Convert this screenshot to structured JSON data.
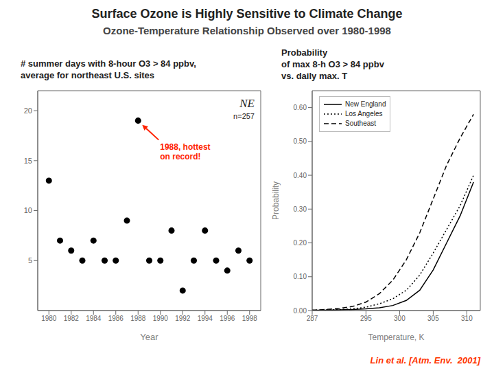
{
  "title": "Surface Ozone is Highly Sensitive to Climate Change",
  "subtitle": "Ozone-Temperature Relationship Observed over 1980-1998",
  "annotations": [
    {
      "text": "Lin et al. [Atm. Env.  2001]",
      "color": "#ff3300"
    }
  ],
  "chart_data": [
    {
      "type": "scatter",
      "title": [
        "# summer days with 8-hour O3 > 84 ppbv,",
        "average for northeast U.S. sites"
      ],
      "x_label": "Year",
      "x": [
        1980,
        1981,
        1982,
        1983,
        1984,
        1985,
        1986,
        1987,
        1988,
        1989,
        1990,
        1991,
        1992,
        1993,
        1994,
        1995,
        1996,
        1997,
        1998
      ],
      "values": [
        13,
        7,
        6,
        5,
        7,
        5,
        5,
        9,
        19,
        5,
        5,
        8,
        2,
        5,
        8,
        5,
        4,
        6,
        5
      ],
      "color": "#000000",
      "xlim": [
        1979,
        1999
      ],
      "xticks": [
        1980,
        1982,
        1984,
        1986,
        1988,
        1990,
        1992,
        1994,
        1996,
        1998
      ],
      "ylim": [
        0,
        22
      ],
      "yticks": [
        5,
        10,
        15,
        20
      ],
      "grid": false,
      "annotations": [
        {
          "text": "NE"
        },
        {
          "text": "n=257"
        },
        {
          "text": [
            "1988, hottest",
            "on record!"
          ],
          "color": "#ff2200"
        }
      ]
    },
    {
      "type": "line",
      "title": [
        "Probability",
        "of max 8-h O3 > 84 ppbv",
        "vs. daily max. T"
      ],
      "x_label": "Temperature, K",
      "y_label": "Probability",
      "x": [
        287,
        289,
        291,
        293,
        295,
        297,
        299,
        301,
        303,
        305,
        307,
        309,
        311
      ],
      "series": [
        {
          "name": "New England",
          "color": "#000000",
          "line_style": "solid",
          "values": [
            0.001,
            0.001,
            0.002,
            0.003,
            0.005,
            0.008,
            0.015,
            0.03,
            0.06,
            0.12,
            0.2,
            0.28,
            0.38
          ]
        },
        {
          "name": "Los Angeles",
          "color": "#000000",
          "line_style": "dotted",
          "values": [
            0.001,
            0.002,
            0.003,
            0.005,
            0.01,
            0.02,
            0.035,
            0.06,
            0.105,
            0.17,
            0.24,
            0.31,
            0.4
          ]
        },
        {
          "name": "Southeast",
          "color": "#000000",
          "line_style": "dashed",
          "values": [
            0.001,
            0.003,
            0.006,
            0.012,
            0.025,
            0.05,
            0.09,
            0.15,
            0.23,
            0.33,
            0.43,
            0.51,
            0.58
          ]
        }
      ],
      "xlim": [
        287,
        312
      ],
      "xticks": [
        287,
        295,
        300,
        305,
        310
      ],
      "ylim": [
        0,
        0.65
      ],
      "yticks": [
        {
          "value": 0,
          "label": "0.00"
        },
        {
          "value": 0.1,
          "label": "0.10"
        },
        {
          "value": 0.2,
          "label": "0.20"
        },
        {
          "value": 0.3,
          "label": "0.30"
        },
        {
          "value": 0.4,
          "label": "0.40"
        },
        {
          "value": 0.5,
          "label": "0.50"
        },
        {
          "value": 0.6,
          "label": "0.60"
        }
      ],
      "legend": "upper left",
      "grid": false
    }
  ]
}
